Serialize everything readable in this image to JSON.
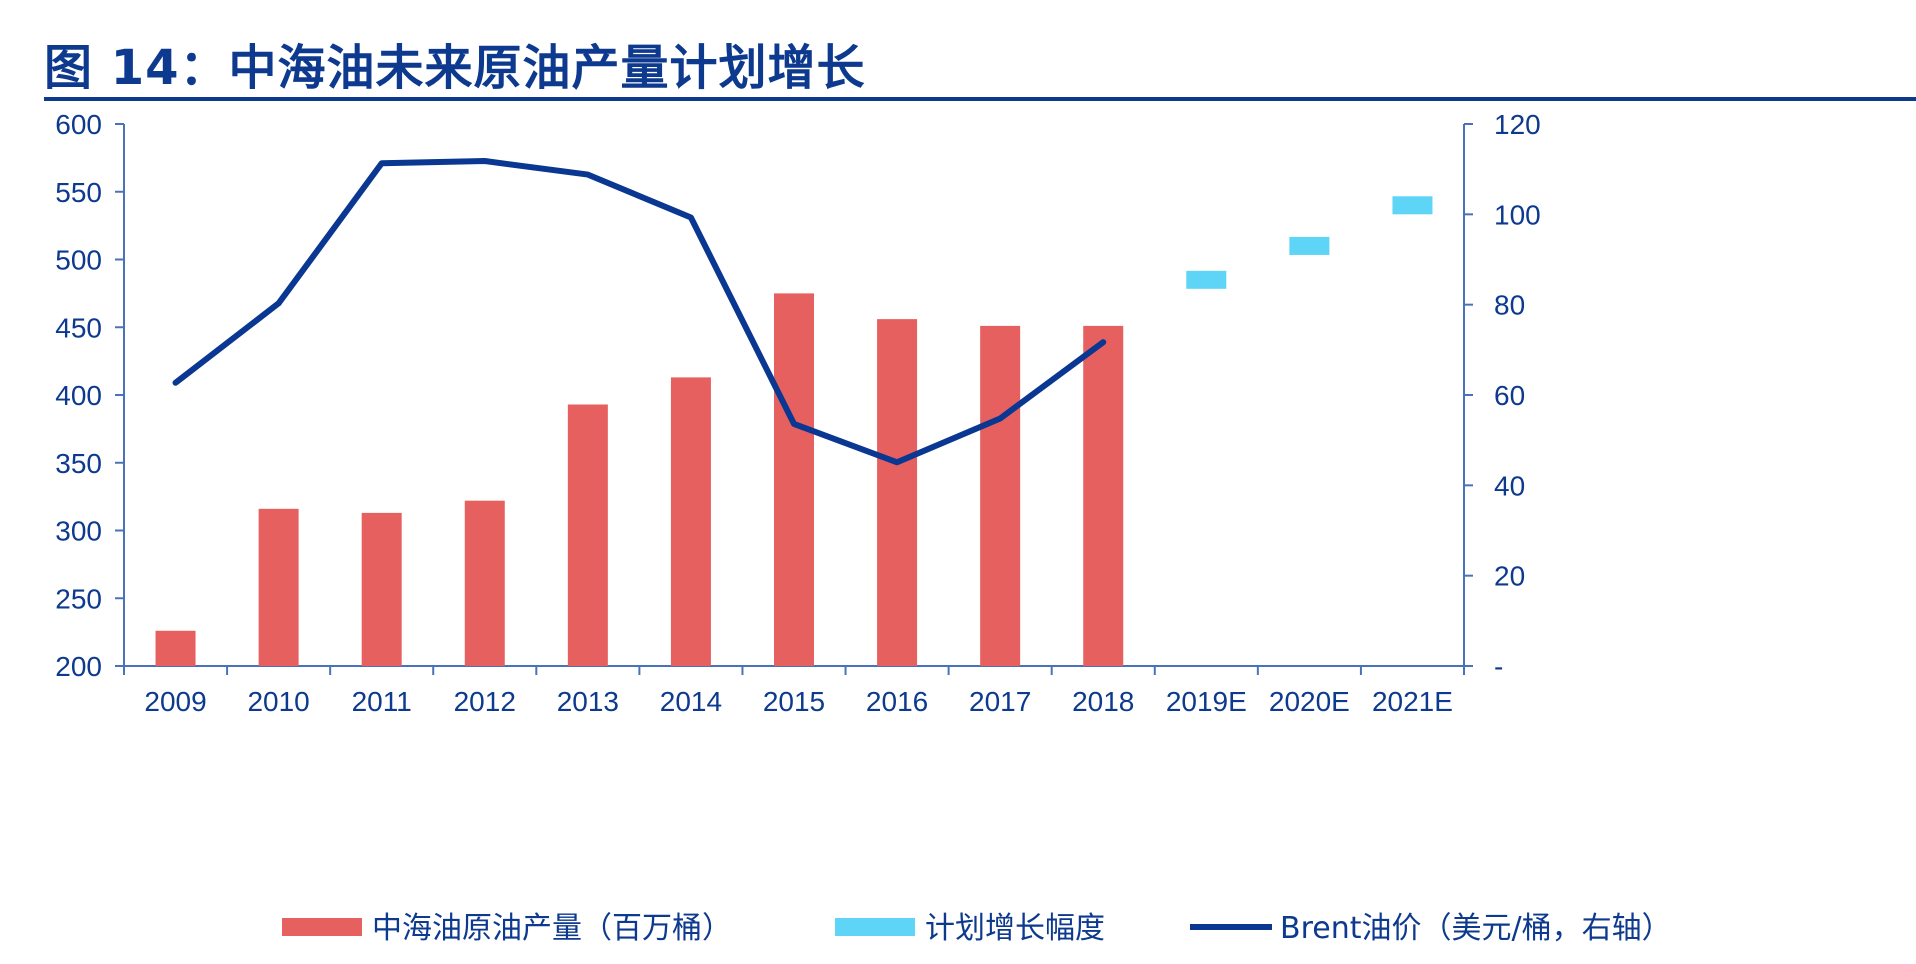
{
  "title": "图 14：中海油未来原油产量计划增长",
  "colors": {
    "title": "#0d3a8e",
    "axis": "#4a72b8",
    "production_bar": "#e66060",
    "plan_marker": "#5ed4f7",
    "brent_line": "#0a3791"
  },
  "chart_data": {
    "type": "bar",
    "title": "图 14：中海油未来原油产量计划增长",
    "categories": [
      "2009",
      "2010",
      "2011",
      "2012",
      "2013",
      "2014",
      "2015",
      "2016",
      "2017",
      "2018",
      "2019E",
      "2020E",
      "2021E"
    ],
    "left_axis": {
      "range": [
        200,
        600
      ],
      "ticks": [
        "200",
        "250",
        "300",
        "350",
        "400",
        "450",
        "500",
        "550",
        "600"
      ]
    },
    "right_axis": {
      "range": [
        0,
        120
      ],
      "ticks": [
        "-",
        "20",
        "40",
        "60",
        "80",
        "100",
        "120"
      ]
    },
    "series": [
      {
        "name": "中海油原油产量（百万桶）",
        "type": "bar",
        "axis": "left",
        "values": [
          226,
          316,
          313,
          322,
          393,
          413,
          475,
          456,
          451,
          451,
          null,
          null,
          null
        ]
      },
      {
        "name": "计划增长幅度",
        "type": "marker",
        "axis": "left",
        "values": [
          null,
          null,
          null,
          null,
          null,
          null,
          null,
          null,
          null,
          null,
          485,
          510,
          540
        ]
      },
      {
        "name": "Brent油价（美元/桶，右轴）",
        "type": "line",
        "axis": "right",
        "values": [
          62.7,
          80.3,
          111.3,
          111.8,
          108.8,
          99.3,
          53.6,
          45.1,
          54.8,
          71.7,
          null,
          null,
          null
        ]
      }
    ],
    "legend_position": "bottom",
    "grid": false
  }
}
